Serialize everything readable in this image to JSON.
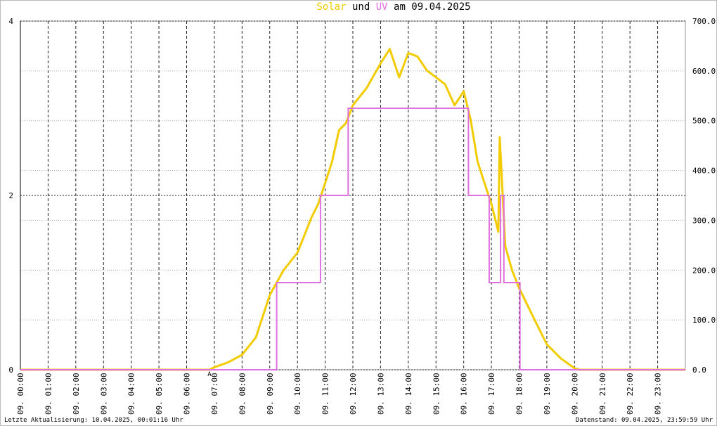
{
  "chart_data": {
    "type": "line",
    "title_connector": "und",
    "title_date": "am 09.04.2025",
    "series": [
      {
        "name": "Solar",
        "color": "#f2cc00",
        "axis": "y2",
        "step": false,
        "x": [
          0,
          6.83,
          7,
          7.5,
          8,
          8.5,
          9,
          9.5,
          10,
          10.5,
          10.75,
          11,
          11.25,
          11.5,
          11.75,
          12,
          12.5,
          13,
          13.33,
          13.67,
          14,
          14.33,
          14.67,
          15,
          15.33,
          15.67,
          16,
          16.25,
          16.5,
          16.75,
          17,
          17.25,
          17.3,
          17.5,
          17.75,
          18,
          18.5,
          19,
          19.5,
          20,
          20.17,
          24
        ],
        "values": [
          0,
          0,
          5,
          15,
          30,
          65,
          150,
          200,
          235,
          305,
          333,
          375,
          418,
          481,
          495,
          531,
          566,
          615,
          644,
          587,
          636,
          629,
          601,
          587,
          573,
          531,
          559,
          502,
          418,
          375,
          333,
          277,
          467,
          248,
          199,
          164,
          107,
          51,
          23,
          3,
          0,
          0
        ]
      },
      {
        "name": "UV",
        "color": "#e070e0",
        "step": true,
        "x": [
          0,
          9.25,
          10.83,
          11.83,
          16.17,
          16.92,
          17.33,
          17.45,
          18.03,
          24
        ],
        "values": [
          0,
          1,
          2,
          3,
          2,
          1,
          2,
          1,
          0,
          0
        ]
      }
    ],
    "xlim": [
      0,
      24
    ],
    "xticks": [
      {
        "value": 0,
        "label": "09. 00:00"
      },
      {
        "value": 1,
        "label": "09. 01:00"
      },
      {
        "value": 2,
        "label": "09. 02:00"
      },
      {
        "value": 3,
        "label": "09. 03:00"
      },
      {
        "value": 4,
        "label": "09. 04:00"
      },
      {
        "value": 5,
        "label": "09. 05:00"
      },
      {
        "value": 6,
        "label": "09. 06:00"
      },
      {
        "value": 7,
        "label": "09. 07:00"
      },
      {
        "value": 8,
        "label": "09. 08:00"
      },
      {
        "value": 9,
        "label": "09. 09:00"
      },
      {
        "value": 10,
        "label": "09. 10:00"
      },
      {
        "value": 11,
        "label": "09. 11:00"
      },
      {
        "value": 12,
        "label": "09. 12:00"
      },
      {
        "value": 13,
        "label": "09. 13:00"
      },
      {
        "value": 14,
        "label": "09. 14:00"
      },
      {
        "value": 15,
        "label": "09. 15:00"
      },
      {
        "value": 16,
        "label": "09. 16:00"
      },
      {
        "value": 17,
        "label": "09. 17:00"
      },
      {
        "value": 18,
        "label": "09. 18:00"
      },
      {
        "value": 19,
        "label": "09. 19:00"
      },
      {
        "value": 20,
        "label": "09. 20:00"
      },
      {
        "value": 21,
        "label": "09. 21:00"
      },
      {
        "value": 22,
        "label": "09. 22:00"
      },
      {
        "value": 23,
        "label": "09. 23:00"
      }
    ],
    "ylim": [
      0,
      4
    ],
    "yticks": [
      0,
      2,
      4
    ],
    "y2lim": [
      0,
      700
    ],
    "y2ticks": [
      {
        "value": 0,
        "label": "0.0"
      },
      {
        "value": 100,
        "label": "100.0"
      },
      {
        "value": 200,
        "label": "200.0"
      },
      {
        "value": 300,
        "label": "300.0"
      },
      {
        "value": 400,
        "label": "400.0"
      },
      {
        "value": 500,
        "label": "500.0"
      },
      {
        "value": 600,
        "label": "600.0"
      },
      {
        "value": 700,
        "label": "700.0"
      }
    ],
    "grid": true,
    "annotation": {
      "x": 6.83,
      "label": "A",
      "color": "#cc0000"
    },
    "footer_left": "Letzte Aktualisierung: 10.04.2025, 00:01:16 Uhr",
    "footer_right": "Datenstand: 09.04.2025, 23:59:59 Uhr"
  }
}
